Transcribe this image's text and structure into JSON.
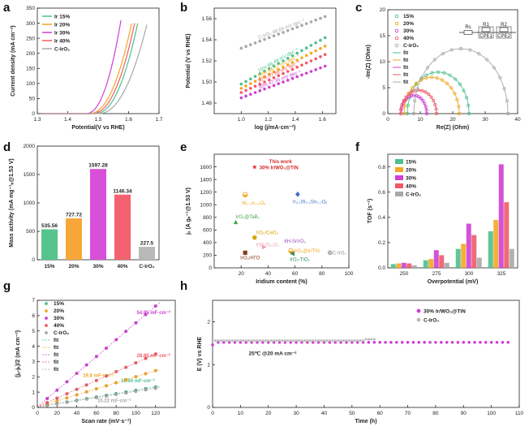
{
  "colors": {
    "c15": "#4cc08c",
    "c20": "#f5a623",
    "c30": "#cf3fd1",
    "c40": "#f05a66",
    "cIrO2": "#a8a8a8",
    "purple": "#a34bc8",
    "black": "#222222"
  },
  "chart_data": [
    {
      "panel": "a",
      "type": "line",
      "xlabel": "Potential(V vs RHE)",
      "ylabel": "Current density (mA cm⁻²)",
      "xlim": [
        1.3,
        1.7
      ],
      "ylim": [
        0,
        350
      ],
      "xticks": [
        "1.3",
        "1.4",
        "1.5",
        "1.6",
        "1.7"
      ],
      "yticks": [
        "0",
        "50",
        "100",
        "150",
        "200",
        "250",
        "300",
        "350"
      ],
      "legend": [
        "Ir 15%",
        "Ir 20%",
        "Ir 30%",
        "Ir 40%",
        "C-IrO₂"
      ],
      "series": [
        {
          "name": "Ir 15%",
          "onset": 1.49,
          "end": 1.63,
          "ymax": 300
        },
        {
          "name": "Ir 20%",
          "onset": 1.47,
          "end": 1.61,
          "ymax": 300
        },
        {
          "name": "Ir 30%",
          "onset": 1.46,
          "end": 1.575,
          "ymax": 310
        },
        {
          "name": "Ir 40%",
          "onset": 1.48,
          "end": 1.62,
          "ymax": 300
        },
        {
          "name": "C-IrO₂",
          "onset": 1.5,
          "end": 1.66,
          "ymax": 295
        }
      ]
    },
    {
      "panel": "b",
      "type": "line",
      "xlabel": "log (j/mA·cm⁻²)",
      "ylabel": "Potential (V vs RHE)",
      "xlim": [
        0.8,
        1.7
      ],
      "ylim": [
        1.47,
        1.57
      ],
      "xticks": [
        "1.0",
        "1.2",
        "1.4",
        "1.6"
      ],
      "yticks": [
        "1.48",
        "1.50",
        "1.52",
        "1.54",
        "1.56"
      ],
      "series": [
        {
          "name": "C-IrO₂",
          "slope_label": "C-IrO₂ 48.84 mV dec⁻¹",
          "x": [
            1.0,
            1.62
          ],
          "y": [
            1.532,
            1.562
          ]
        },
        {
          "name": "15%",
          "slope_label": "15%  66.49 mV dec⁻¹",
          "x": [
            1.0,
            1.62
          ],
          "y": [
            1.498,
            1.542
          ]
        },
        {
          "name": "20%",
          "slope_label": "20%  64.57 mV dec⁻¹",
          "x": [
            1.0,
            1.62
          ],
          "y": [
            1.494,
            1.534
          ]
        },
        {
          "name": "40%",
          "slope_label": "40%  57.86 mV dec⁻¹",
          "x": [
            1.0,
            1.62
          ],
          "y": [
            1.49,
            1.526
          ]
        },
        {
          "name": "30%",
          "slope_label": "30%  47.35 mV dec⁻¹",
          "x": [
            1.0,
            1.62
          ],
          "y": [
            1.485,
            1.515
          ]
        }
      ]
    },
    {
      "panel": "c",
      "type": "scatter",
      "xlabel": "Re(Z) (Ohm)",
      "ylabel": "-Im(Z) (Ohm)",
      "xlim": [
        0,
        40
      ],
      "ylim": [
        0,
        20
      ],
      "xticks": [
        "0",
        "10",
        "20",
        "30",
        "40"
      ],
      "yticks": [
        "0",
        "5",
        "10",
        "15",
        "20"
      ],
      "legend": [
        "15%",
        "20%",
        "30%",
        "40%",
        "C-IrO₂",
        "fit",
        "fit",
        "fit",
        "fit",
        "fit"
      ],
      "circuit_labels": [
        "Rs",
        "R1",
        "CPE1",
        "R2",
        "CPE2"
      ],
      "series": [
        {
          "name": "15%",
          "r_start": 6,
          "r_end": 25,
          "peak": 8
        },
        {
          "name": "20%",
          "r_start": 5,
          "r_end": 22,
          "peak": 7
        },
        {
          "name": "30%",
          "r_start": 4,
          "r_end": 12,
          "peak": 3.5
        },
        {
          "name": "40%",
          "r_start": 4,
          "r_end": 15,
          "peak": 4.5
        },
        {
          "name": "C-IrO₂",
          "r_start": 8,
          "r_end": 37,
          "peak": 12.5
        }
      ]
    },
    {
      "panel": "d",
      "type": "bar",
      "xlabel": "",
      "ylabel": "Mass activity (mA mg⁻¹ᵢᵣ@1.53 V)",
      "ylim": [
        0,
        2000
      ],
      "yticks": [
        "0",
        "500",
        "1000",
        "1500",
        "2000"
      ],
      "categories": [
        "15%",
        "20%",
        "30%",
        "40%",
        "C-IrO₂"
      ],
      "values": [
        535.56,
        727.72,
        1597.28,
        1146.34,
        227.5
      ],
      "value_labels": [
        "535.56",
        "727.72",
        "1597.28",
        "1146.34",
        "227.5"
      ]
    },
    {
      "panel": "e",
      "type": "scatter",
      "xlabel": "Iridium content (%)",
      "ylabel": "jₓ (A gᵢᵣ⁻¹@1.53 V)",
      "xlim": [
        0,
        100
      ],
      "ylim": [
        0,
        1800
      ],
      "xticks": [
        "20",
        "40",
        "60",
        "80",
        "100"
      ],
      "yticks": [
        "0",
        "200",
        "400",
        "600",
        "800",
        "1000",
        "1200",
        "1400",
        "1600"
      ],
      "points": [
        {
          "label": "W₀.₅Ir₀.₅Oᵧ",
          "x": 23,
          "y": 1160,
          "marker": "circle-half",
          "color": "#f5a623"
        },
        {
          "label": "Ir₀.₁W₀.₂Sn₀.₇Oₓ",
          "x": 62,
          "y": 1165,
          "marker": "diamond",
          "color": "#3f6fc9"
        },
        {
          "label": "IrO₂@TaB₂",
          "x": 16,
          "y": 720,
          "marker": "triangle",
          "color": "#49a845"
        },
        {
          "label": "IrO₂/CeO₂",
          "x": 30,
          "y": 480,
          "marker": "pentagon",
          "color": "#d9a300"
        },
        {
          "label": "IrW₂Ti₃₀O₂",
          "x": 37,
          "y": 330,
          "marker": "tri-right",
          "color": "#f29bb0"
        },
        {
          "label": "IrO₂/ATO",
          "x": 23,
          "y": 240,
          "marker": "square",
          "color": "#8a3b1f"
        },
        {
          "label": "6H-SrIrO₃",
          "x": 60,
          "y": 400,
          "marker": "none",
          "color": "#a34bc8"
        },
        {
          "label": "IrO₂@Ir/TiN",
          "x": 57,
          "y": 270,
          "marker": "circle-half",
          "color": "#f5a623"
        },
        {
          "label": "IrO₂-TiO₂",
          "x": 58,
          "y": 225,
          "marker": "tri-left",
          "color": "#2e8b57"
        },
        {
          "label": "C-IrO₂",
          "x": 86,
          "y": 240,
          "marker": "hex",
          "color": "#bbbbbb"
        }
      ],
      "highlight": {
        "label1": "This work",
        "label2": "30% Ir/WO₃@TiN",
        "x": 30,
        "y": 1597
      }
    },
    {
      "panel": "f",
      "type": "bar",
      "xlabel": "Overpotential (mV)",
      "ylabel": "TOF (s⁻¹)",
      "ylim": [
        0,
        0.9
      ],
      "yticks": [
        "0.0",
        "0.2",
        "0.4",
        "0.6",
        "0.8"
      ],
      "categories": [
        "250",
        "275",
        "300",
        "325"
      ],
      "legend": [
        "15%",
        "20%",
        "30%",
        "40%",
        "C-IrO₂"
      ],
      "series": [
        {
          "name": "15%",
          "values": [
            0.03,
            0.06,
            0.15,
            0.29
          ]
        },
        {
          "name": "20%",
          "values": [
            0.035,
            0.07,
            0.19,
            0.38
          ]
        },
        {
          "name": "30%",
          "values": [
            0.04,
            0.14,
            0.35,
            0.82
          ]
        },
        {
          "name": "40%",
          "values": [
            0.035,
            0.1,
            0.26,
            0.52
          ]
        },
        {
          "name": "C-IrO₂",
          "values": [
            0.02,
            0.04,
            0.08,
            0.15
          ]
        }
      ]
    },
    {
      "panel": "g",
      "type": "scatter",
      "xlabel": "Scan rate (mV·s⁻¹)",
      "ylabel": "(jₐ-jₖ)/2 (mA cm⁻²)",
      "xlim": [
        0,
        140
      ],
      "ylim": [
        0,
        7
      ],
      "xticks": [
        "0",
        "20",
        "40",
        "60",
        "80",
        "100",
        "120"
      ],
      "yticks": [
        "0",
        "1",
        "2",
        "3",
        "4",
        "5",
        "6",
        "7"
      ],
      "x": [
        10,
        20,
        30,
        40,
        50,
        60,
        70,
        80,
        90,
        100,
        110,
        120
      ],
      "legend": [
        "15%",
        "20%",
        "30%",
        "40%",
        "C-IrO₂",
        "fit",
        "fit",
        "fit",
        "fit",
        "fit"
      ],
      "series": [
        {
          "name": "15%",
          "slope": 0.01094,
          "annot": "10.94 mF·cm⁻²"
        },
        {
          "name": "20%",
          "slope": 0.0198,
          "annot": "19.8 mF·cm⁻²"
        },
        {
          "name": "30%",
          "slope": 0.05495,
          "annot": "54.95 mF·cm⁻²"
        },
        {
          "name": "40%",
          "slope": 0.02885,
          "annot": "28.85 mF·cm⁻²"
        },
        {
          "name": "C-IrO₂",
          "slope": 0.01022,
          "annot": "10.22 mF·cm⁻²"
        }
      ]
    },
    {
      "panel": "h",
      "type": "line",
      "xlabel": "Time (h)",
      "ylabel": "E (V) vs RHE",
      "xlim": [
        0,
        110
      ],
      "ylim": [
        0,
        2.5
      ],
      "xticks": [
        "0",
        "10",
        "20",
        "30",
        "40",
        "50",
        "60",
        "70",
        "80",
        "90",
        "100",
        "110"
      ],
      "yticks": [
        "0",
        "1",
        "2"
      ],
      "legend": [
        "30% Ir/WO₃@TiN",
        "C-IrO₂"
      ],
      "annotation": "25℃ @20 mA cm⁻²",
      "series": [
        {
          "name": "30% Ir/WO₃@TiN",
          "x_end": 107,
          "y": 1.52
        },
        {
          "name": "C-IrO₂",
          "x_end": 58,
          "y": 1.56
        }
      ]
    }
  ]
}
